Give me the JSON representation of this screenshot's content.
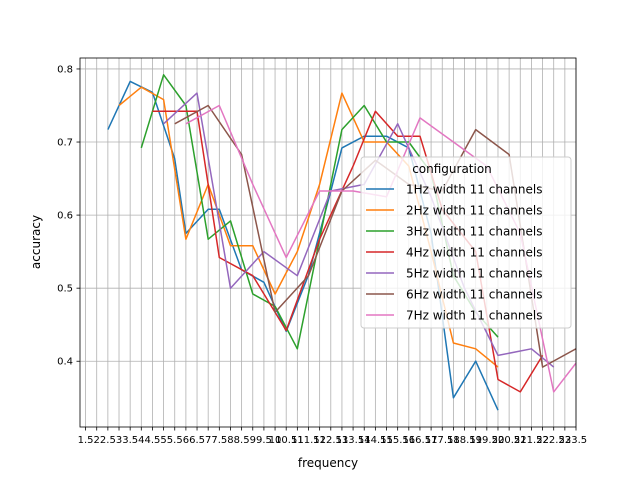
{
  "chart_data": {
    "type": "line",
    "xlabel": "frequency",
    "ylabel": "accuracy",
    "xlim": [
      1.25,
      23.5
    ],
    "ylim": [
      0.31,
      0.815
    ],
    "grid": true,
    "x_ticks": [
      1.5,
      2,
      2.5,
      3,
      3.5,
      4,
      4.5,
      5,
      5.5,
      6,
      6.5,
      7,
      7.5,
      8,
      8.5,
      9,
      9.5,
      10,
      10.5,
      11,
      11.5,
      12,
      12.5,
      13,
      13.5,
      14,
      14.5,
      15,
      15.5,
      16,
      16.5,
      17,
      17.5,
      18,
      18.5,
      19,
      19.5,
      20,
      20.5,
      21,
      21.5,
      22,
      22.5,
      23,
      23.5
    ],
    "x_tick_labels": [
      "1.5",
      "2",
      "2.5",
      "3",
      "3.5",
      "4",
      "4.5",
      "5",
      "5.5",
      "6",
      "6.5",
      "7",
      "7.5",
      "8",
      "8.5",
      "9",
      "9.5",
      "10",
      "10.5",
      "11",
      "11.5",
      "12",
      "12.5",
      "13",
      "13.5",
      "14",
      "14.5",
      "15",
      "15.5",
      "16",
      "16.5",
      "17",
      "17.5",
      "18",
      "18.5",
      "19",
      "19.5",
      "20",
      "20.5",
      "21",
      "21.5",
      "22",
      "22.5",
      "23",
      "23.5"
    ],
    "y_ticks": [
      0.4,
      0.5,
      0.6,
      0.7,
      0.8
    ],
    "y_tick_labels": [
      "0.4",
      "0.5",
      "0.6",
      "0.7",
      "0.8"
    ],
    "legend": {
      "title": "configuration",
      "placement": "center-right"
    },
    "series": [
      {
        "name": "1Hz width 11 channels",
        "color": "#1f77b4",
        "points": [
          [
            2.5,
            0.717
          ],
          [
            3.5,
            0.783
          ],
          [
            4.5,
            0.768
          ],
          [
            5.5,
            0.677
          ],
          [
            6,
            0.575
          ],
          [
            7,
            0.608
          ],
          [
            7.5,
            0.608
          ],
          [
            8.5,
            0.525
          ],
          [
            9.5,
            0.508
          ],
          [
            10.5,
            0.441
          ],
          [
            11.5,
            0.518
          ],
          [
            12.5,
            0.633
          ],
          [
            13,
            0.692
          ],
          [
            14,
            0.708
          ],
          [
            15,
            0.708
          ],
          [
            16,
            0.692
          ],
          [
            17,
            0.575
          ],
          [
            18,
            0.35
          ],
          [
            19,
            0.4
          ],
          [
            20,
            0.333
          ]
        ]
      },
      {
        "name": "2Hz width 11 channels",
        "color": "#ff7f0e",
        "points": [
          [
            3,
            0.75
          ],
          [
            4,
            0.775
          ],
          [
            5,
            0.758
          ],
          [
            6,
            0.567
          ],
          [
            7,
            0.642
          ],
          [
            8,
            0.558
          ],
          [
            9,
            0.558
          ],
          [
            10,
            0.492
          ],
          [
            11,
            0.55
          ],
          [
            12,
            0.642
          ],
          [
            13,
            0.767
          ],
          [
            14,
            0.7
          ],
          [
            15,
            0.7
          ],
          [
            16,
            0.667
          ],
          [
            17,
            0.55
          ],
          [
            18,
            0.425
          ],
          [
            19,
            0.417
          ],
          [
            20,
            0.392
          ]
        ]
      },
      {
        "name": "3Hz width 11 channels",
        "color": "#2ca02c",
        "points": [
          [
            4,
            0.692
          ],
          [
            5,
            0.792
          ],
          [
            6,
            0.75
          ],
          [
            7,
            0.567
          ],
          [
            8,
            0.592
          ],
          [
            9,
            0.492
          ],
          [
            10,
            0.475
          ],
          [
            11,
            0.417
          ],
          [
            12,
            0.567
          ],
          [
            13,
            0.717
          ],
          [
            14,
            0.75
          ],
          [
            15,
            0.7
          ],
          [
            16,
            0.7
          ],
          [
            17,
            0.658
          ],
          [
            18,
            0.517
          ],
          [
            19,
            0.467
          ],
          [
            20,
            0.433
          ]
        ]
      },
      {
        "name": "4Hz width 11 channels",
        "color": "#d62728",
        "points": [
          [
            4.5,
            0.742
          ],
          [
            6,
            0.742
          ],
          [
            6.5,
            0.742
          ],
          [
            7.5,
            0.542
          ],
          [
            9,
            0.517
          ],
          [
            10.5,
            0.442
          ],
          [
            12,
            0.567
          ],
          [
            13.5,
            0.667
          ],
          [
            14.5,
            0.742
          ],
          [
            15.5,
            0.708
          ],
          [
            16.5,
            0.708
          ],
          [
            17.5,
            0.608
          ],
          [
            19,
            0.55
          ],
          [
            20,
            0.375
          ],
          [
            21,
            0.358
          ],
          [
            22,
            0.408
          ]
        ]
      },
      {
        "name": "5Hz width 11 channels",
        "color": "#9467bd",
        "points": [
          [
            5,
            0.725
          ],
          [
            6.5,
            0.767
          ],
          [
            8,
            0.5
          ],
          [
            9.5,
            0.55
          ],
          [
            11,
            0.517
          ],
          [
            12.5,
            0.633
          ],
          [
            14,
            0.642
          ],
          [
            15.5,
            0.725
          ],
          [
            17,
            0.625
          ],
          [
            18.5,
            0.5
          ],
          [
            20,
            0.408
          ],
          [
            21.5,
            0.417
          ],
          [
            22.5,
            0.392
          ]
        ]
      },
      {
        "name": "6Hz width 11 channels",
        "color": "#8c564b",
        "points": [
          [
            5.5,
            0.725
          ],
          [
            7,
            0.75
          ],
          [
            8.5,
            0.683
          ],
          [
            10,
            0.467
          ],
          [
            11.5,
            0.517
          ],
          [
            13,
            0.633
          ],
          [
            14.5,
            0.675
          ],
          [
            16,
            0.642
          ],
          [
            17.5,
            0.633
          ],
          [
            19,
            0.717
          ],
          [
            20.5,
            0.683
          ],
          [
            22,
            0.392
          ],
          [
            23.5,
            0.417
          ]
        ]
      },
      {
        "name": "7Hz width 11 channels",
        "color": "#e377c2",
        "points": [
          [
            6,
            0.725
          ],
          [
            7.5,
            0.75
          ],
          [
            9,
            0.642
          ],
          [
            10.5,
            0.542
          ],
          [
            12,
            0.633
          ],
          [
            13.5,
            0.633
          ],
          [
            15,
            0.625
          ],
          [
            16.5,
            0.733
          ],
          [
            18,
            0.7
          ],
          [
            19.5,
            0.667
          ],
          [
            21,
            0.575
          ],
          [
            22.5,
            0.358
          ],
          [
            24,
            0.417
          ]
        ]
      }
    ]
  }
}
